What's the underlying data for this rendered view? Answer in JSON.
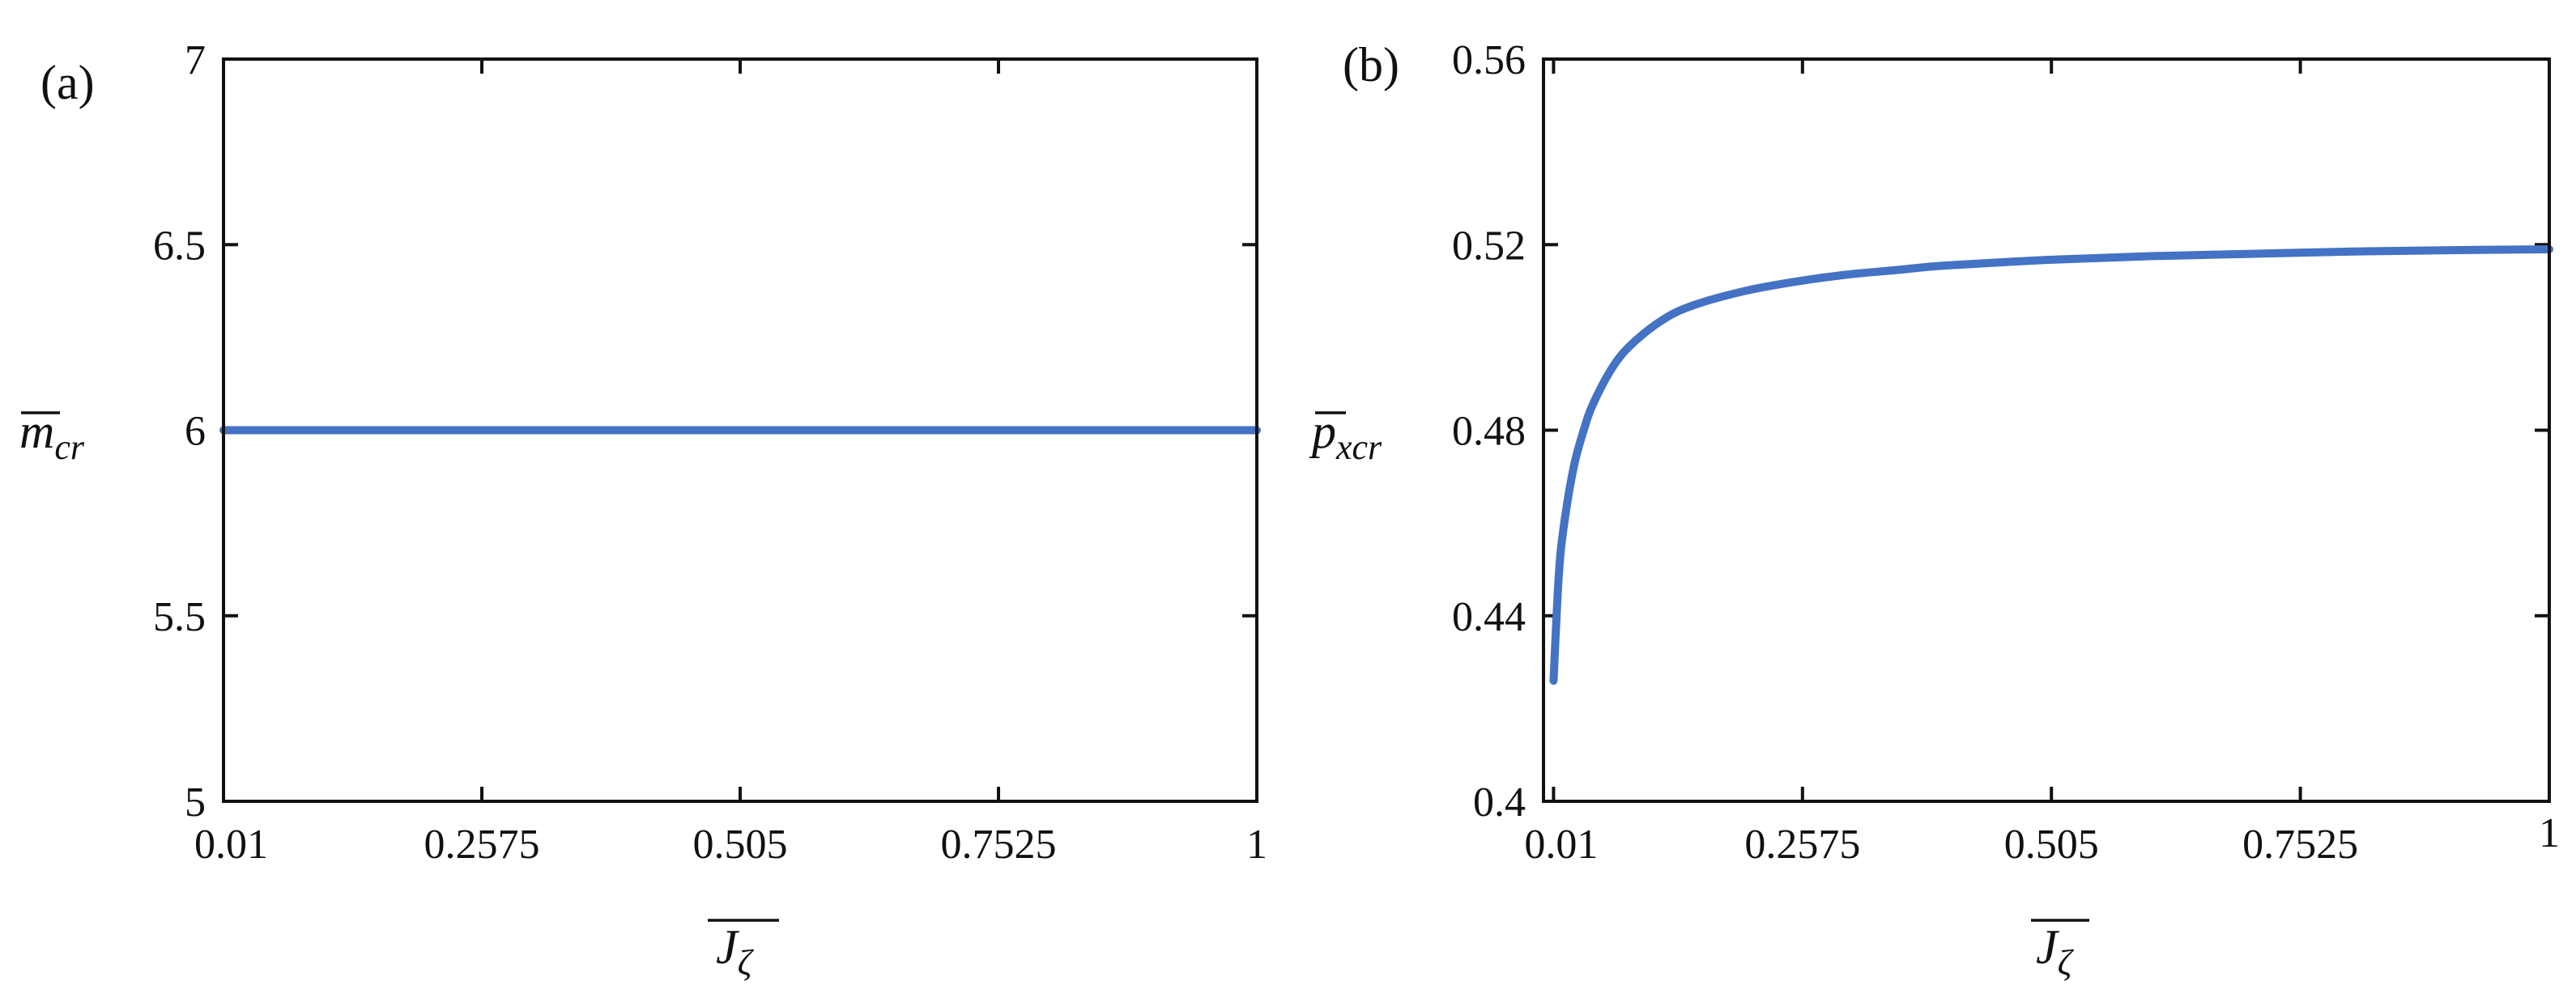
{
  "chart_data": [
    {
      "type": "line",
      "panel_label": "(a)",
      "title": "",
      "xlabel": {
        "main": "J",
        "sub": "ζ",
        "overline": true
      },
      "ylabel": {
        "main": "m",
        "sub": "cr",
        "overline": true
      },
      "xlim": [
        0.01,
        1
      ],
      "ylim": [
        5,
        7
      ],
      "x_ticks": [
        0.01,
        0.2575,
        0.505,
        0.7525,
        1
      ],
      "x_tick_labels": [
        "0.01",
        "0.2575",
        "0.505",
        "0.7525",
        "1"
      ],
      "y_ticks": [
        5,
        5.5,
        6,
        6.5,
        7
      ],
      "y_tick_labels": [
        "5",
        "5.5",
        "6",
        "6.5",
        "7"
      ],
      "grid": false,
      "series": [
        {
          "color": "#4472C4",
          "x": [
            0.01,
            0.1,
            0.2,
            0.3,
            0.4,
            0.5,
            0.6,
            0.7,
            0.8,
            0.9,
            1.0
          ],
          "y": [
            6,
            6,
            6,
            6,
            6,
            6,
            6,
            6,
            6,
            6,
            6
          ]
        }
      ]
    },
    {
      "type": "line",
      "panel_label": "(b)",
      "title": "",
      "xlabel": {
        "main": "J",
        "sub": "ζ",
        "overline": true
      },
      "ylabel": {
        "main": "p",
        "sub": "xcr",
        "overline": true
      },
      "xlim": [
        0,
        1
      ],
      "ylim": [
        0.4,
        0.56
      ],
      "x_ticks": [
        0.01,
        0.2575,
        0.505,
        0.7525,
        1
      ],
      "x_tick_labels": [
        "0.01",
        "0.2575",
        "0.505",
        "0.7525",
        "1"
      ],
      "y_ticks": [
        0.4,
        0.44,
        0.48,
        0.52,
        0.56
      ],
      "y_tick_labels": [
        "0.4",
        "0.44",
        "0.48",
        "0.52",
        "0.56"
      ],
      "grid": false,
      "series": [
        {
          "color": "#4472C4",
          "x": [
            0.01,
            0.015,
            0.02,
            0.03,
            0.04,
            0.05,
            0.07,
            0.09,
            0.12,
            0.15,
            0.2,
            0.25,
            0.3,
            0.35,
            0.4,
            0.5,
            0.6,
            0.7,
            0.8,
            0.9,
            1.0
          ],
          "y": [
            0.426,
            0.448,
            0.459,
            0.472,
            0.48,
            0.486,
            0.494,
            0.499,
            0.504,
            0.507,
            0.51,
            0.512,
            0.5135,
            0.5145,
            0.5155,
            0.5167,
            0.5175,
            0.518,
            0.5185,
            0.5188,
            0.519
          ]
        }
      ]
    }
  ]
}
